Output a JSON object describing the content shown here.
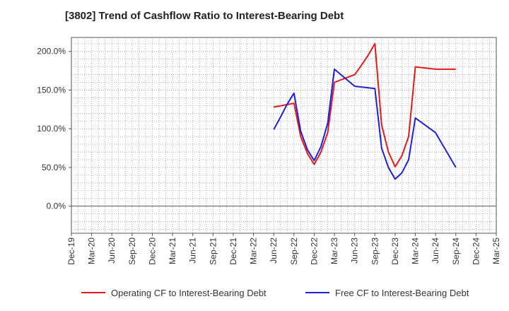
{
  "chart_data": {
    "type": "line",
    "title": "[3802]  Trend of Cashflow Ratio to Interest-Bearing Debt",
    "xlabel": "",
    "ylabel": "",
    "x_ticks": [
      "Dec-19",
      "Mar-20",
      "Jun-20",
      "Sep-20",
      "Dec-20",
      "Mar-21",
      "Jun-21",
      "Sep-21",
      "Dec-21",
      "Mar-22",
      "Jun-22",
      "Sep-22",
      "Dec-22",
      "Mar-23",
      "Jun-23",
      "Sep-23",
      "Dec-23",
      "Mar-24",
      "Jun-24",
      "Sep-24",
      "Dec-24",
      "Mar-25"
    ],
    "y_ticks": [
      0,
      50,
      100,
      150,
      200
    ],
    "y_tick_labels": [
      "0.0%",
      "50.0%",
      "100.0%",
      "150.0%",
      "200.0%"
    ],
    "ylim": [
      -35,
      218
    ],
    "grid": true,
    "legend_position": "bottom",
    "series": [
      {
        "name": "Operating CF to Interest-Bearing Debt",
        "color": "#e31a1c",
        "points": [
          [
            "Jun-22",
            128
          ],
          [
            "Sep-22",
            133
          ],
          [
            "Oct-22",
            90
          ],
          [
            "Nov-22",
            68
          ],
          [
            "Dec-22",
            54
          ],
          [
            "Jan-23",
            70
          ],
          [
            "Feb-23",
            95
          ],
          [
            "Mar-23",
            160
          ],
          [
            "Jun-23",
            170
          ],
          [
            "Jul-23",
            182
          ],
          [
            "Aug-23",
            195
          ],
          [
            "Sep-23",
            210
          ],
          [
            "Oct-23",
            105
          ],
          [
            "Nov-23",
            70
          ],
          [
            "Dec-23",
            51
          ],
          [
            "Jan-24",
            65
          ],
          [
            "Feb-24",
            90
          ],
          [
            "Mar-24",
            180
          ],
          [
            "Jun-24",
            177
          ],
          [
            "Sep-24",
            177
          ]
        ]
      },
      {
        "name": "Free CF to Interest-Bearing Debt",
        "color": "#1f1fd4",
        "points": [
          [
            "Jun-22",
            99
          ],
          [
            "Jul-22",
            115
          ],
          [
            "Aug-22",
            132
          ],
          [
            "Sep-22",
            146
          ],
          [
            "Oct-22",
            97
          ],
          [
            "Nov-22",
            73
          ],
          [
            "Dec-22",
            59
          ],
          [
            "Jan-23",
            77
          ],
          [
            "Feb-23",
            107
          ],
          [
            "Mar-23",
            177
          ],
          [
            "Jun-23",
            155
          ],
          [
            "Sep-23",
            152
          ],
          [
            "Oct-23",
            75
          ],
          [
            "Nov-23",
            50
          ],
          [
            "Dec-23",
            35
          ],
          [
            "Jan-24",
            43
          ],
          [
            "Feb-24",
            60
          ],
          [
            "Mar-24",
            114
          ],
          [
            "Jun-24",
            95
          ],
          [
            "Sep-24",
            50
          ]
        ]
      }
    ]
  }
}
